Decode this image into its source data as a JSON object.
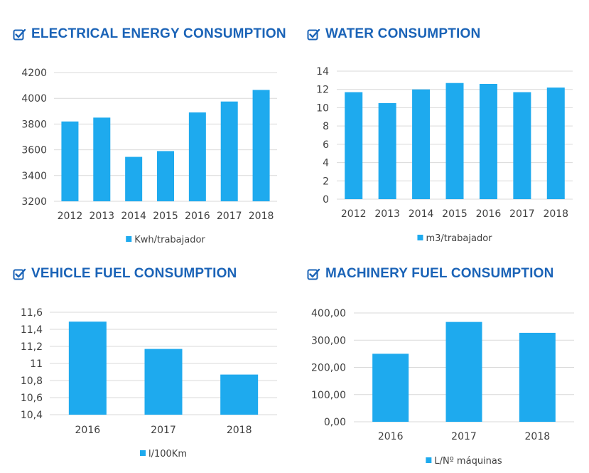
{
  "colors": {
    "bar": "#1eaaee",
    "heading": "#1a63b7",
    "grid": "#d9d9d9",
    "text": "#404040"
  },
  "icons": {
    "heading_icon": "checkbox-checked-icon"
  },
  "chart_data": [
    {
      "title": "ELECTRICAL ENERGY CONSUMPTION",
      "type": "bar",
      "categories": [
        "2012",
        "2013",
        "2014",
        "2015",
        "2016",
        "2017",
        "2018"
      ],
      "series": [
        {
          "name": "Kwh/trabajador",
          "values": [
            3820,
            3850,
            3545,
            3590,
            3890,
            3975,
            4065
          ]
        }
      ],
      "ylim": [
        3200,
        4200
      ],
      "yticks": [
        "3200",
        "3400",
        "3600",
        "3800",
        "4000",
        "4200"
      ],
      "grid": true,
      "legend": "bottom"
    },
    {
      "title": "WATER CONSUMPTION",
      "type": "bar",
      "categories": [
        "2012",
        "2013",
        "2014",
        "2015",
        "2016",
        "2017",
        "2018"
      ],
      "series": [
        {
          "name": "m3/trabajador",
          "values": [
            11.7,
            10.5,
            12.0,
            12.7,
            12.6,
            11.7,
            12.2
          ]
        }
      ],
      "ylim": [
        0,
        14
      ],
      "yticks": [
        "0",
        "2",
        "4",
        "6",
        "8",
        "10",
        "12",
        "14"
      ],
      "grid": true,
      "legend": "bottom"
    },
    {
      "title": "VEHICLE FUEL CONSUMPTION",
      "type": "bar",
      "categories": [
        "2016",
        "2017",
        "2018"
      ],
      "series": [
        {
          "name": "l/100Km",
          "values": [
            11.49,
            11.17,
            10.87
          ]
        }
      ],
      "ylim": [
        10.4,
        11.6
      ],
      "yticks": [
        "10,4",
        "10,6",
        "10,8",
        "11",
        "11,2",
        "11,4",
        "11,6"
      ],
      "grid": true,
      "legend": "bottom"
    },
    {
      "title": "MACHINERY FUEL CONSUMPTION",
      "type": "bar",
      "categories": [
        "2016",
        "2017",
        "2018"
      ],
      "series": [
        {
          "name": "L/Nº máquinas",
          "values": [
            250,
            367,
            327
          ]
        }
      ],
      "ylim": [
        0,
        400
      ],
      "yticks": [
        "0,00",
        "100,00",
        "200,00",
        "300,00",
        "400,00"
      ],
      "grid": true,
      "legend": "bottom"
    }
  ]
}
